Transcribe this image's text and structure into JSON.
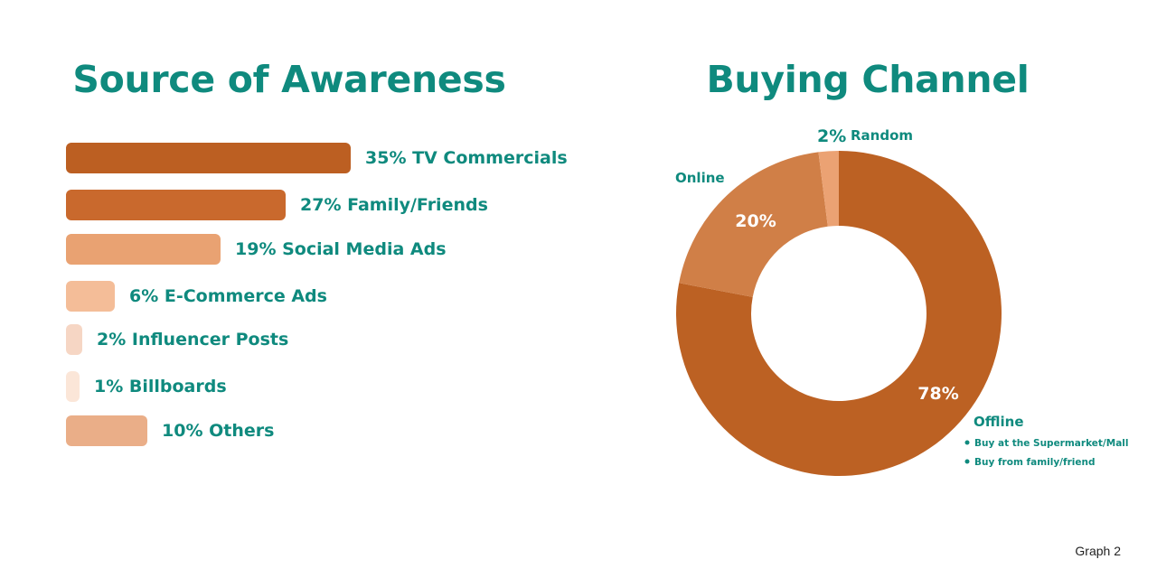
{
  "footnote": "Graph 2",
  "chart_data": [
    {
      "type": "bar",
      "title": "Source of Awareness",
      "orientation": "horizontal",
      "unit": "%",
      "categories": [
        "TV Commercials",
        "Family/Friends",
        "Social Media Ads",
        "E-Commerce Ads",
        "Influencer Posts",
        "Billboards",
        "Others"
      ],
      "values": [
        35,
        27,
        19,
        6,
        2,
        1,
        10
      ],
      "labels": [
        "35% TV Commercials",
        "27% Family/Friends",
        "19% Social Media Ads",
        "6% E-Commerce Ads",
        "2% Influencer Posts",
        "1% Billboards",
        "10% Others"
      ],
      "colors": [
        "#bc5f22",
        "#c9692d",
        "#e9a272",
        "#f4bd98",
        "#f6d6c4",
        "#fbe6d8",
        "#eaae88"
      ],
      "grid": false,
      "legend": "none"
    },
    {
      "type": "pie",
      "style": "donut",
      "title": "Buying Channel",
      "unit": "%",
      "categories": [
        "Offline",
        "Online",
        "Random"
      ],
      "values": [
        78,
        20,
        2
      ],
      "value_labels": [
        "78%",
        "20%",
        "2%"
      ],
      "colors": [
        "#bc6123",
        "#d07f47",
        "#eba273"
      ],
      "offline_details": [
        "Buy at the Supermarket/Mall",
        "Buy from family/friend"
      ],
      "legend": "none"
    }
  ]
}
